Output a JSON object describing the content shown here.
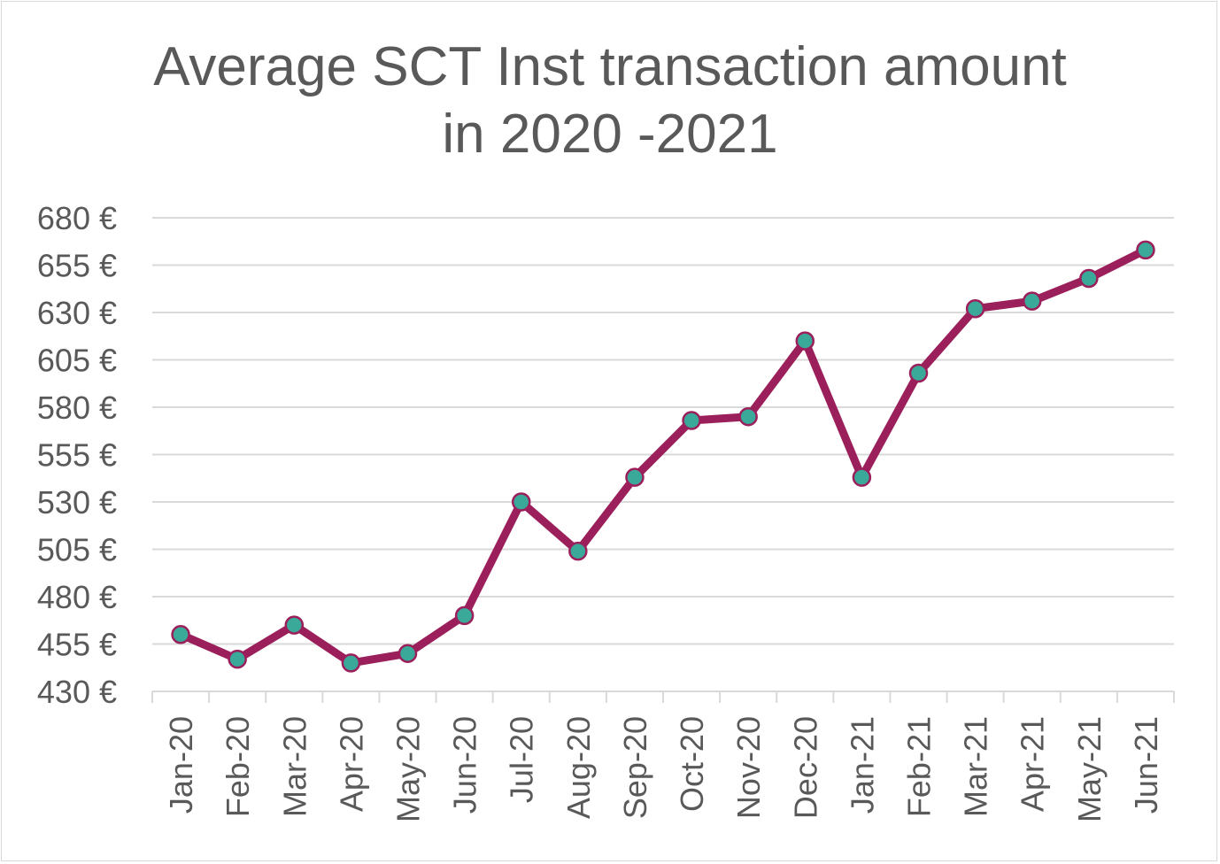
{
  "chart_data": {
    "type": "line",
    "title_line1": "Average SCT Inst transaction amount",
    "title_line2": "in 2020 -2021",
    "xlabel": "",
    "ylabel": "",
    "categories": [
      "Jan-20",
      "Feb-20",
      "Mar-20",
      "Apr-20",
      "May-20",
      "Jun-20",
      "Jul-20",
      "Aug-20",
      "Sep-20",
      "Oct-20",
      "Nov-20",
      "Dec-20",
      "Jan-21",
      "Feb-21",
      "Mar-21",
      "Apr-21",
      "May-21",
      "Jun-21"
    ],
    "values": [
      460,
      447,
      465,
      445,
      450,
      470,
      530,
      504,
      543,
      573,
      575,
      615,
      543,
      598,
      632,
      636,
      648,
      663
    ],
    "yticks": [
      "430 €",
      "455 €",
      "480 €",
      "505 €",
      "530 €",
      "555 €",
      "580 €",
      "605 €",
      "630 €",
      "655 €",
      "680 €"
    ],
    "ylim": [
      430,
      680
    ],
    "ytick_step": 25,
    "grid": true,
    "legend": "none",
    "colors": {
      "line": "#9b1f5b",
      "marker_fill": "#3aa99a",
      "grid": "#d9d9d9",
      "text": "#595959"
    }
  }
}
